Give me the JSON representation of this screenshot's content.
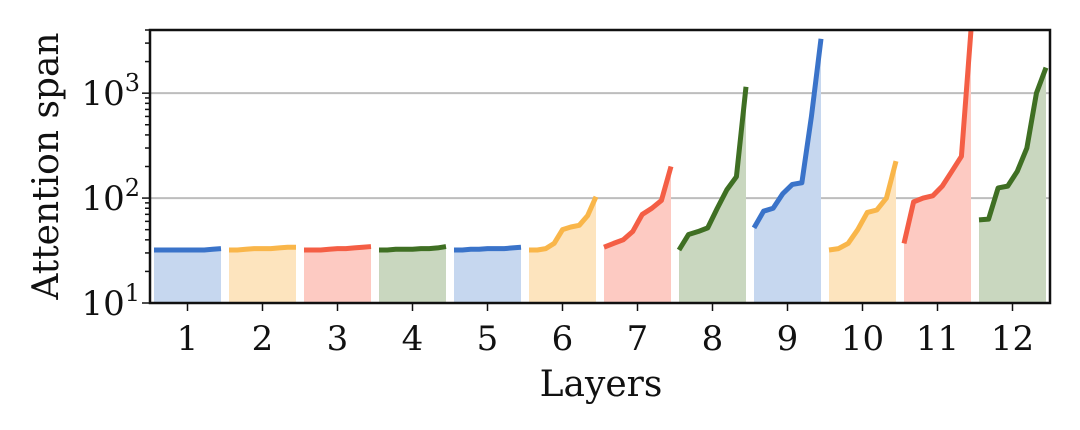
{
  "chart_data": {
    "type": "area",
    "ylabel": "Attention span",
    "xlabel": "Layers",
    "yscale": "log",
    "ylim": [
      10,
      4000
    ],
    "grid": "horizontal",
    "yticks": [
      {
        "value": 10,
        "base": "10",
        "exp": "1"
      },
      {
        "value": 100,
        "base": "10",
        "exp": "2"
      },
      {
        "value": 1000,
        "base": "10",
        "exp": "3"
      }
    ],
    "categories": [
      "1",
      "2",
      "3",
      "4",
      "5",
      "6",
      "7",
      "8",
      "9",
      "10",
      "11",
      "12"
    ],
    "palette": {
      "blue": "#3a73c9",
      "orange": "#f9b64a",
      "red": "#f45e45",
      "green": "#3f6f23"
    },
    "fills": {
      "blue": "#c6d7ef",
      "orange": "#fde4be",
      "red": "#fdcac2",
      "green": "#c9d7bf"
    },
    "layers": [
      {
        "label": "1",
        "color": "blue",
        "spans": [
          32,
          32,
          32,
          32,
          32,
          32,
          32,
          32.5,
          33
        ]
      },
      {
        "label": "2",
        "color": "orange",
        "spans": [
          32,
          32,
          32.5,
          33,
          33,
          33,
          33.5,
          34,
          34
        ]
      },
      {
        "label": "3",
        "color": "red",
        "spans": [
          32,
          32,
          32,
          32.5,
          33,
          33,
          33.5,
          34,
          34.5
        ]
      },
      {
        "label": "4",
        "color": "green",
        "spans": [
          32,
          32,
          32.5,
          32.5,
          32.5,
          33,
          33,
          33.5,
          34.5
        ]
      },
      {
        "label": "5",
        "color": "blue",
        "spans": [
          32,
          32,
          32.5,
          32.5,
          33,
          33,
          33,
          33.5,
          34
        ]
      },
      {
        "label": "6",
        "color": "orange",
        "spans": [
          32,
          32,
          33,
          37,
          50,
          53,
          55,
          68,
          103
        ]
      },
      {
        "label": "7",
        "color": "red",
        "spans": [
          34,
          37,
          40,
          48,
          70,
          80,
          95,
          200
        ]
      },
      {
        "label": "8",
        "color": "green",
        "spans": [
          32,
          45,
          48,
          52,
          80,
          120,
          160,
          1150
        ]
      },
      {
        "label": "9",
        "color": "blue",
        "spans": [
          52,
          75,
          80,
          110,
          135,
          140,
          600,
          3300
        ]
      },
      {
        "label": "10",
        "color": "orange",
        "spans": [
          32,
          33,
          37,
          50,
          73,
          77,
          100,
          225
        ]
      },
      {
        "label": "11",
        "color": "red",
        "spans": [
          37,
          92,
          100,
          105,
          130,
          180,
          250,
          4000
        ]
      },
      {
        "label": "12",
        "color": "green",
        "spans": [
          62,
          63,
          125,
          130,
          180,
          300,
          1000,
          1750
        ]
      }
    ]
  }
}
